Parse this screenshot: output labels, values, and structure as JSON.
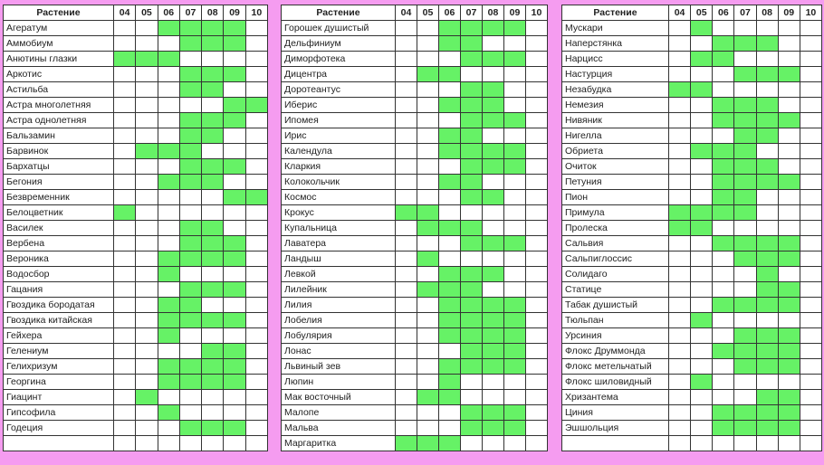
{
  "header": {
    "plant": "Растение",
    "months": [
      "04",
      "05",
      "06",
      "07",
      "08",
      "09",
      "10"
    ]
  },
  "bloom_color": "#66f266",
  "background_color": "#f59cf0",
  "tables": [
    {
      "rows": [
        {
          "name": "Агератум",
          "bloom": [
            "06",
            "07",
            "08",
            "09"
          ]
        },
        {
          "name": "Аммобиум",
          "bloom": [
            "07",
            "08",
            "09"
          ]
        },
        {
          "name": "Анютины глазки",
          "bloom": [
            "04",
            "05",
            "06"
          ]
        },
        {
          "name": "Аркотис",
          "bloom": [
            "07",
            "08",
            "09"
          ]
        },
        {
          "name": "Астильба",
          "bloom": [
            "07",
            "08"
          ]
        },
        {
          "name": "Астра многолетняя",
          "bloom": [
            "09",
            "10"
          ]
        },
        {
          "name": "Астра однолетняя",
          "bloom": [
            "07",
            "08",
            "09"
          ]
        },
        {
          "name": "Бальзамин",
          "bloom": [
            "07",
            "08"
          ]
        },
        {
          "name": "Барвинок",
          "bloom": [
            "05",
            "06",
            "07"
          ]
        },
        {
          "name": "Бархатцы",
          "bloom": [
            "07",
            "08",
            "09"
          ]
        },
        {
          "name": "Бегония",
          "bloom": [
            "06",
            "07",
            "08"
          ]
        },
        {
          "name": "Безвременник",
          "bloom": [
            "09",
            "10"
          ]
        },
        {
          "name": "Белоцветник",
          "bloom": [
            "04"
          ]
        },
        {
          "name": "Василек",
          "bloom": [
            "07",
            "08"
          ]
        },
        {
          "name": "Вербена",
          "bloom": [
            "07",
            "08",
            "09"
          ]
        },
        {
          "name": "Вероника",
          "bloom": [
            "06",
            "07",
            "08",
            "09"
          ]
        },
        {
          "name": "Водосбор",
          "bloom": [
            "06"
          ]
        },
        {
          "name": "Гацания",
          "bloom": [
            "07",
            "08",
            "09"
          ]
        },
        {
          "name": "Гвоздика бородатая",
          "bloom": [
            "06",
            "07"
          ]
        },
        {
          "name": "Гвоздика китайская",
          "bloom": [
            "06",
            "07",
            "08",
            "09"
          ]
        },
        {
          "name": "Гейхера",
          "bloom": [
            "06"
          ]
        },
        {
          "name": "Гелениум",
          "bloom": [
            "08",
            "09"
          ]
        },
        {
          "name": "Гелихризум",
          "bloom": [
            "06",
            "07",
            "08",
            "09"
          ]
        },
        {
          "name": "Георгина",
          "bloom": [
            "06",
            "07",
            "08",
            "09"
          ]
        },
        {
          "name": "Гиацинт",
          "bloom": [
            "05"
          ]
        },
        {
          "name": "Гипсофила",
          "bloom": [
            "06"
          ]
        },
        {
          "name": "Годеция",
          "bloom": [
            "07",
            "08",
            "09"
          ]
        },
        {
          "name": "",
          "bloom": []
        }
      ]
    },
    {
      "rows": [
        {
          "name": "Горошек душистый",
          "bloom": [
            "06",
            "07",
            "08",
            "09"
          ]
        },
        {
          "name": "Дельфиниум",
          "bloom": [
            "06",
            "07"
          ]
        },
        {
          "name": "Диморфотека",
          "bloom": [
            "07",
            "08",
            "09"
          ]
        },
        {
          "name": "Дицентра",
          "bloom": [
            "05",
            "06"
          ]
        },
        {
          "name": "Доротеантус",
          "bloom": [
            "07",
            "08"
          ]
        },
        {
          "name": "Иберис",
          "bloom": [
            "06",
            "07",
            "08"
          ]
        },
        {
          "name": "Ипомея",
          "bloom": [
            "07",
            "08",
            "09"
          ]
        },
        {
          "name": "Ирис",
          "bloom": [
            "06",
            "07"
          ]
        },
        {
          "name": "Календула",
          "bloom": [
            "06",
            "07",
            "08",
            "09"
          ]
        },
        {
          "name": "Кларкия",
          "bloom": [
            "07",
            "08",
            "09"
          ]
        },
        {
          "name": "Колокольчик",
          "bloom": [
            "06",
            "07"
          ]
        },
        {
          "name": "Космос",
          "bloom": [
            "07",
            "08"
          ]
        },
        {
          "name": "Крокус",
          "bloom": [
            "04",
            "05"
          ]
        },
        {
          "name": "Купальница",
          "bloom": [
            "05",
            "06",
            "07"
          ]
        },
        {
          "name": "Лаватера",
          "bloom": [
            "07",
            "08",
            "09"
          ]
        },
        {
          "name": "Ландыш",
          "bloom": [
            "05"
          ]
        },
        {
          "name": "Левкой",
          "bloom": [
            "06",
            "07",
            "08"
          ]
        },
        {
          "name": "Лилейник",
          "bloom": [
            "05",
            "06",
            "07"
          ]
        },
        {
          "name": "Лилия",
          "bloom": [
            "06",
            "07",
            "08",
            "09"
          ]
        },
        {
          "name": "Лобелия",
          "bloom": [
            "06",
            "07",
            "08",
            "09"
          ]
        },
        {
          "name": "Лобулярия",
          "bloom": [
            "06",
            "07",
            "08",
            "09"
          ]
        },
        {
          "name": "Лонас",
          "bloom": [
            "07",
            "08",
            "09"
          ]
        },
        {
          "name": "Львиный зев",
          "bloom": [
            "06",
            "07",
            "08",
            "09"
          ]
        },
        {
          "name": "Люпин",
          "bloom": [
            "06"
          ]
        },
        {
          "name": "Мак восточный",
          "bloom": [
            "05",
            "06"
          ]
        },
        {
          "name": "Малопе",
          "bloom": [
            "07",
            "08",
            "09"
          ]
        },
        {
          "name": "Мальва",
          "bloom": [
            "07",
            "08",
            "09"
          ]
        },
        {
          "name": "Маргаритка",
          "bloom": [
            "04",
            "05",
            "06"
          ]
        }
      ]
    },
    {
      "rows": [
        {
          "name": "Мускари",
          "bloom": [
            "05"
          ]
        },
        {
          "name": "Наперстянка",
          "bloom": [
            "06",
            "07",
            "08"
          ]
        },
        {
          "name": "Нарцисс",
          "bloom": [
            "05",
            "06"
          ]
        },
        {
          "name": "Настурция",
          "bloom": [
            "07",
            "08",
            "09"
          ]
        },
        {
          "name": "Незабудка",
          "bloom": [
            "04",
            "05"
          ]
        },
        {
          "name": "Немезия",
          "bloom": [
            "06",
            "07",
            "08"
          ]
        },
        {
          "name": "Нивяник",
          "bloom": [
            "06",
            "07",
            "08",
            "09"
          ]
        },
        {
          "name": "Нигелла",
          "bloom": [
            "07",
            "08"
          ]
        },
        {
          "name": "Обриета",
          "bloom": [
            "05",
            "06",
            "07"
          ]
        },
        {
          "name": "Очиток",
          "bloom": [
            "06",
            "07",
            "08"
          ]
        },
        {
          "name": "Петуния",
          "bloom": [
            "06",
            "07",
            "08",
            "09"
          ]
        },
        {
          "name": "Пион",
          "bloom": [
            "06",
            "07"
          ]
        },
        {
          "name": "Примула",
          "bloom": [
            "04",
            "05",
            "06",
            "07"
          ]
        },
        {
          "name": "Пролеска",
          "bloom": [
            "04",
            "05"
          ]
        },
        {
          "name": "Сальвия",
          "bloom": [
            "06",
            "07",
            "08",
            "09"
          ]
        },
        {
          "name": "Сальпиглоссис",
          "bloom": [
            "07",
            "08",
            "09"
          ]
        },
        {
          "name": "Солидаго",
          "bloom": [
            "08"
          ]
        },
        {
          "name": "Статице",
          "bloom": [
            "08",
            "09"
          ]
        },
        {
          "name": "Табак душистый",
          "bloom": [
            "06",
            "07",
            "08",
            "09"
          ]
        },
        {
          "name": "Тюльпан",
          "bloom": [
            "05"
          ]
        },
        {
          "name": "Урсиния",
          "bloom": [
            "07",
            "08",
            "09"
          ]
        },
        {
          "name": "Флокс Друммонда",
          "bloom": [
            "06",
            "07",
            "08",
            "09"
          ]
        },
        {
          "name": "Флокс метельчатый",
          "bloom": [
            "07",
            "08",
            "09"
          ]
        },
        {
          "name": "Флокс шиловидный",
          "bloom": [
            "05"
          ]
        },
        {
          "name": "Хризантема",
          "bloom": [
            "08",
            "09"
          ]
        },
        {
          "name": "Циния",
          "bloom": [
            "06",
            "07",
            "08",
            "09"
          ]
        },
        {
          "name": "Эшшольция",
          "bloom": [
            "06",
            "07",
            "08",
            "09"
          ]
        },
        {
          "name": "",
          "bloom": []
        }
      ]
    }
  ]
}
